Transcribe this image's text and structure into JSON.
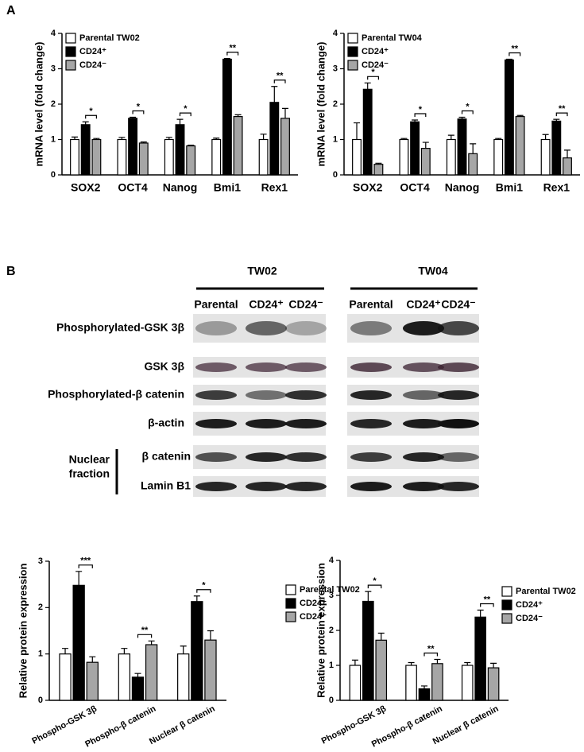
{
  "panels": [
    "A",
    "B"
  ],
  "blot": {
    "groups": [
      "TW02",
      "TW04"
    ],
    "lanes": [
      [
        "Parental",
        "CD24⁺",
        "CD24⁻"
      ],
      [
        "Parental",
        "CD24⁺",
        "CD24⁻"
      ]
    ],
    "rows": [
      "Phosphorylated-GSK 3β",
      "GSK 3β",
      "Phosphorylated-β catenin",
      "β-actin",
      "β catenin",
      "Lamin B1"
    ],
    "fraction": [
      "Nuclear",
      "fraction"
    ]
  },
  "chart_data": [
    {
      "type": "bar",
      "ylabel": "mRNA level (fold change)",
      "categories": [
        "SOX2",
        "OCT4",
        "Nanog",
        "Bmi1",
        "Rex1"
      ],
      "ylim": [
        0,
        4
      ],
      "yticks": [
        0,
        1,
        2,
        3,
        4
      ],
      "legend": "upper left",
      "series": [
        {
          "name": "Parental TW02",
          "color": "#ffffff",
          "values": [
            1,
            1,
            1,
            1,
            1
          ],
          "errors": [
            0.07,
            0.06,
            0.06,
            0.04,
            0.15
          ]
        },
        {
          "name": "CD24⁺",
          "color": "#000000",
          "values": [
            1.42,
            1.6,
            1.42,
            3.27,
            2.05
          ],
          "errors": [
            0.08,
            0.03,
            0.15,
            0.02,
            0.45
          ]
        },
        {
          "name": "CD24⁻",
          "color": "#a6a6a6",
          "values": [
            1.0,
            0.9,
            0.82,
            1.65,
            1.6
          ],
          "errors": [
            0.03,
            0.03,
            0.02,
            0.05,
            0.28
          ]
        }
      ],
      "significance": [
        "*",
        "*",
        "*",
        "**",
        "**"
      ]
    },
    {
      "type": "bar",
      "ylabel": "mRNA level (fold change)",
      "categories": [
        "SOX2",
        "OCT4",
        "Nanog",
        "Bmi1",
        "Rex1"
      ],
      "ylim": [
        0,
        4
      ],
      "yticks": [
        0,
        1,
        2,
        3,
        4
      ],
      "legend": "upper left",
      "series": [
        {
          "name": "Parental TW04",
          "color": "#ffffff",
          "values": [
            1,
            1,
            1,
            1,
            1
          ],
          "errors": [
            0.47,
            0.03,
            0.12,
            0.03,
            0.14
          ]
        },
        {
          "name": "CD24⁺",
          "color": "#000000",
          "values": [
            2.42,
            1.5,
            1.58,
            3.25,
            1.52
          ],
          "errors": [
            0.18,
            0.05,
            0.05,
            0.02,
            0.05
          ]
        },
        {
          "name": "CD24⁻",
          "color": "#a6a6a6",
          "values": [
            0.3,
            0.75,
            0.6,
            1.65,
            0.48
          ],
          "errors": [
            0.03,
            0.17,
            0.28,
            0.03,
            0.22
          ]
        }
      ],
      "significance": [
        "*",
        "*",
        "*",
        "**",
        "**"
      ]
    },
    {
      "type": "bar",
      "ylabel": "Relative protein expression",
      "categories": [
        "Phospho-GSK 3β",
        "Phospho-β catenin",
        "Nuclear β catenin"
      ],
      "ylim": [
        0,
        3
      ],
      "yticks": [
        0,
        1,
        2,
        3
      ],
      "legend": "right",
      "series": [
        {
          "name": "Parental TW02",
          "color": "#ffffff",
          "values": [
            1,
            1,
            1
          ],
          "errors": [
            0.12,
            0.12,
            0.17
          ]
        },
        {
          "name": "CD24⁺",
          "color": "#000000",
          "values": [
            2.48,
            0.5,
            2.13
          ],
          "errors": [
            0.3,
            0.08,
            0.12
          ]
        },
        {
          "name": "CD24⁻",
          "color": "#a6a6a6",
          "values": [
            0.82,
            1.2,
            1.3
          ],
          "errors": [
            0.12,
            0.08,
            0.2
          ]
        }
      ],
      "significance": [
        "***",
        "**",
        "*"
      ]
    },
    {
      "type": "bar",
      "ylabel": "Relative protein expression",
      "categories": [
        "Phospho-GSK 3β",
        "Phospho-β catenin",
        "Nuclear β catenin"
      ],
      "ylim": [
        0,
        4
      ],
      "yticks": [
        0,
        1,
        2,
        3,
        4
      ],
      "legend": "right",
      "series": [
        {
          "name": "Parental TW02",
          "color": "#ffffff",
          "values": [
            1,
            1,
            1
          ],
          "errors": [
            0.15,
            0.08,
            0.08
          ]
        },
        {
          "name": "CD24⁺",
          "color": "#000000",
          "values": [
            2.83,
            0.33,
            2.38
          ],
          "errors": [
            0.28,
            0.08,
            0.2
          ]
        },
        {
          "name": "CD24⁻",
          "color": "#a6a6a6",
          "values": [
            1.72,
            1.05,
            0.93
          ],
          "errors": [
            0.2,
            0.12,
            0.13
          ]
        }
      ],
      "significance": [
        "*",
        "**",
        "**"
      ]
    }
  ]
}
